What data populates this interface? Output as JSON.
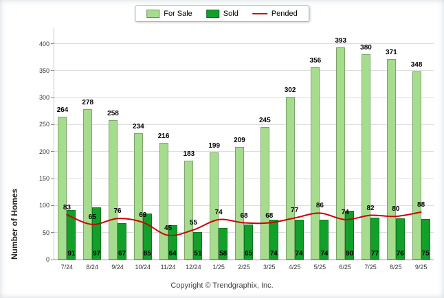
{
  "chart_data": {
    "type": "bar",
    "title": "",
    "categories": [
      "7/24",
      "8/24",
      "9/24",
      "10/24",
      "11/24",
      "12/24",
      "1/25",
      "2/25",
      "3/25",
      "4/25",
      "5/25",
      "6/25",
      "7/25",
      "8/25",
      "9/25"
    ],
    "series": [
      {
        "name": "For Sale",
        "type": "bar",
        "color": "#A6DC8D",
        "values": [
          264,
          278,
          258,
          234,
          216,
          183,
          199,
          209,
          245,
          302,
          356,
          393,
          380,
          371,
          348
        ]
      },
      {
        "name": "Sold",
        "type": "bar",
        "color": "#12A02A",
        "values": [
          91,
          97,
          67,
          85,
          64,
          51,
          58,
          65,
          74,
          74,
          74,
          90,
          77,
          76,
          75
        ]
      },
      {
        "name": "Pended",
        "type": "line",
        "color": "#CC0000",
        "values": [
          83,
          65,
          76,
          69,
          45,
          55,
          74,
          68,
          68,
          77,
          86,
          74,
          82,
          80,
          88
        ]
      }
    ],
    "xlabel": "",
    "ylabel": "Number of Homes",
    "ylim": [
      0,
      430
    ],
    "yticks": [
      0,
      50,
      100,
      150,
      200,
      250,
      300,
      350,
      400
    ],
    "grid": true,
    "legend_position": "top"
  },
  "footer": {
    "copyright": "Copyright © Trendgraphix, Inc."
  }
}
